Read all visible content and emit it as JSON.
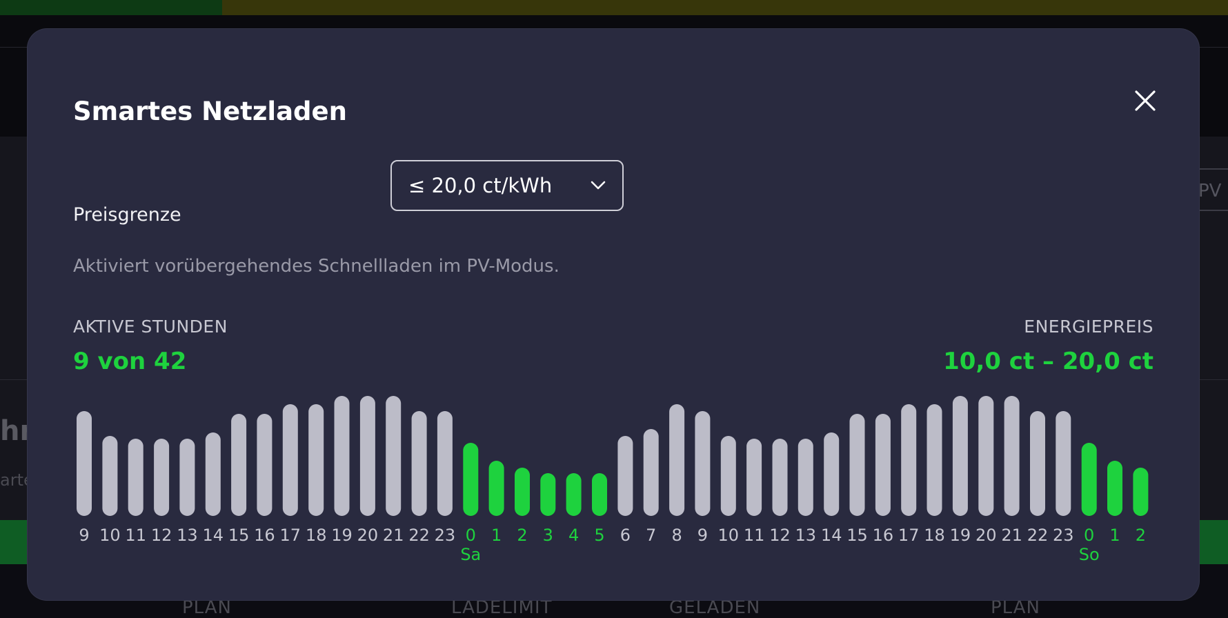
{
  "background": {
    "pv_label": "PV",
    "left_heading_fragment": "hr",
    "left_text_fragment": "arte",
    "footer_labels": [
      "PLAN",
      "LADELIMIT",
      "GELADEN",
      "PLAN"
    ]
  },
  "modal": {
    "title": "Smartes Netzladen",
    "close_icon": "close-icon",
    "price_limit": {
      "label": "Preisgrenze",
      "selected": "≤ 20,0 ct/kWh",
      "icon": "chevron-down-icon"
    },
    "hint": "Aktiviert vorübergehendes Schnellladen im PV-Modus.",
    "active_hours": {
      "label": "AKTIVE STUNDEN",
      "value": "9 von 42"
    },
    "energy_price": {
      "label": "ENERGIEPREIS",
      "value": "10,0 ct – 20,0 ct"
    }
  },
  "colors": {
    "accent_green": "#1ed23e",
    "inactive_bar": "#bcbcc8",
    "modal_bg": "#292a3f"
  },
  "chart_data": {
    "type": "bar",
    "categories": [
      "9",
      "10",
      "11",
      "12",
      "13",
      "14",
      "15",
      "16",
      "17",
      "18",
      "19",
      "20",
      "21",
      "22",
      "23",
      "0",
      "1",
      "2",
      "3",
      "4",
      "5",
      "6",
      "7",
      "8",
      "9",
      "10",
      "11",
      "12",
      "13",
      "14",
      "15",
      "16",
      "17",
      "18",
      "19",
      "20",
      "21",
      "22",
      "23",
      "0",
      "1",
      "2"
    ],
    "values": [
      152,
      116,
      112,
      112,
      112,
      121,
      148,
      148,
      162,
      162,
      174,
      174,
      174,
      152,
      152,
      106,
      80,
      70,
      62,
      62,
      62,
      116,
      126,
      162,
      152,
      116,
      112,
      112,
      112,
      121,
      148,
      148,
      162,
      162,
      174,
      174,
      174,
      152,
      152,
      106,
      80,
      70
    ],
    "active": [
      false,
      false,
      false,
      false,
      false,
      false,
      false,
      false,
      false,
      false,
      false,
      false,
      false,
      false,
      false,
      true,
      true,
      true,
      true,
      true,
      true,
      false,
      false,
      false,
      false,
      false,
      false,
      false,
      false,
      false,
      false,
      false,
      false,
      false,
      false,
      false,
      false,
      false,
      false,
      true,
      true,
      true
    ],
    "day_labels": [
      {
        "index": 15,
        "label": "Sa"
      },
      {
        "index": 39,
        "label": "So"
      }
    ],
    "xlabel": "",
    "ylabel": ""
  }
}
